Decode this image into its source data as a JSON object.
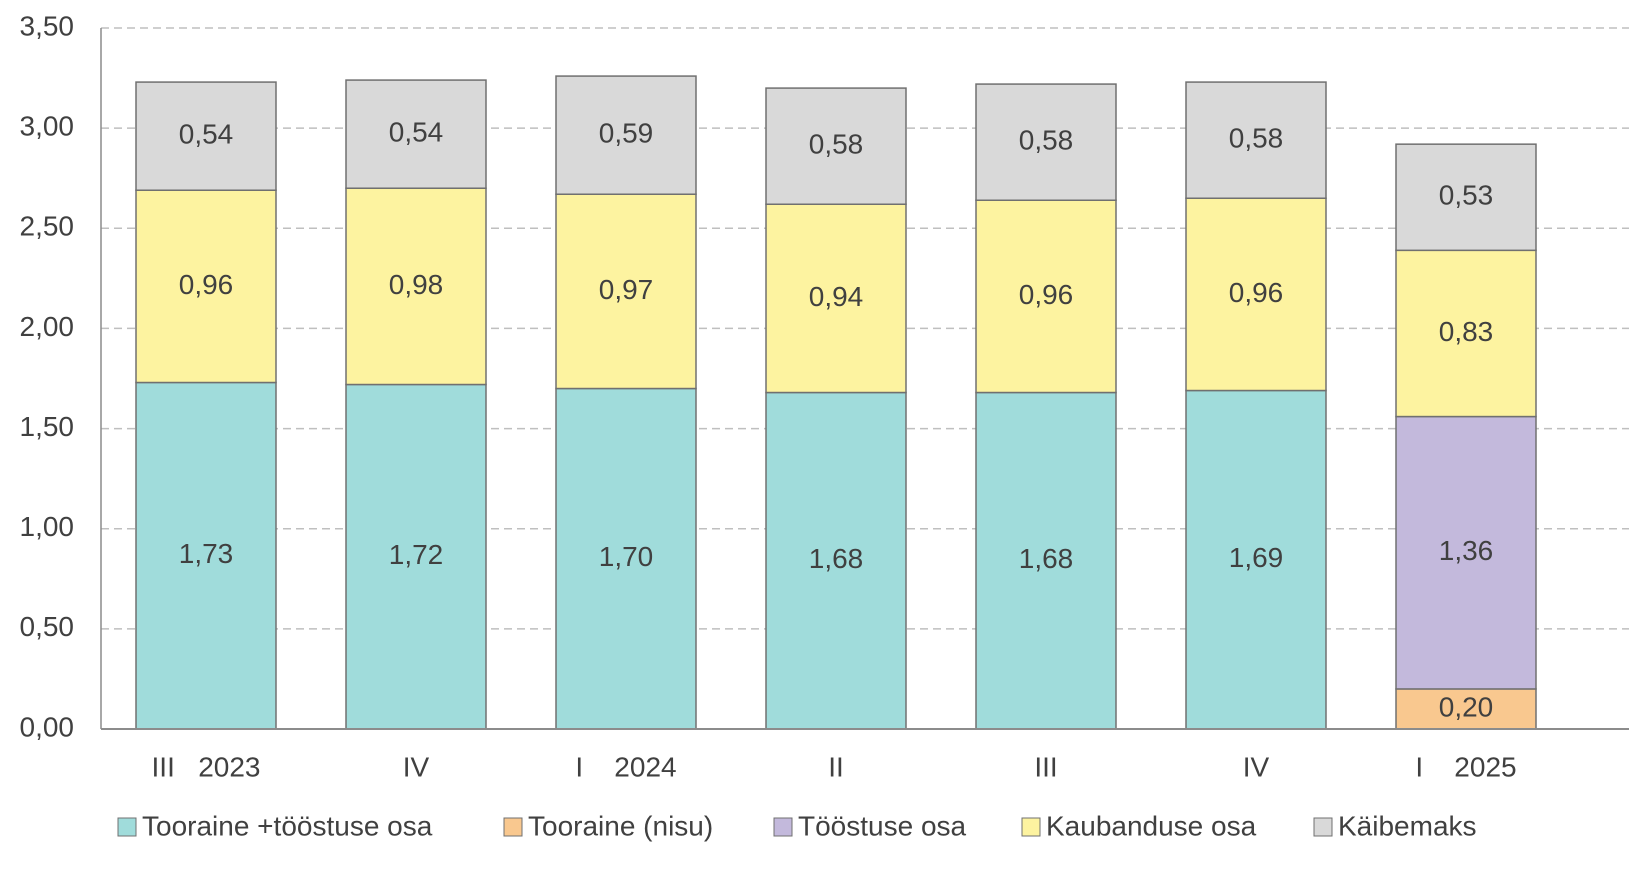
{
  "chart_data": {
    "type": "stacked_bar",
    "categories": [
      "III   2023",
      "IV",
      "I    2024",
      "II",
      "III",
      "IV",
      "I    2025"
    ],
    "series": [
      {
        "name": "Tooraine +tööstuse osa",
        "color": "#a0dcdb",
        "values": [
          1.73,
          1.72,
          1.7,
          1.68,
          1.68,
          1.69,
          null
        ],
        "value_labels": [
          "1,73",
          "1,72",
          "1,70",
          "1,68",
          "1,68",
          "1,69",
          null
        ]
      },
      {
        "name": "Tooraine (nisu)",
        "color": "#f9c88f",
        "values": [
          null,
          null,
          null,
          null,
          null,
          null,
          0.2
        ],
        "value_labels": [
          null,
          null,
          null,
          null,
          null,
          null,
          "0,20"
        ]
      },
      {
        "name": "Tööstuse osa",
        "color": "#c3b9dc",
        "values": [
          null,
          null,
          null,
          null,
          null,
          null,
          1.36
        ],
        "value_labels": [
          null,
          null,
          null,
          null,
          null,
          null,
          "1,36"
        ]
      },
      {
        "name": "Kaubanduse osa",
        "color": "#fdf3a0",
        "values": [
          0.96,
          0.98,
          0.97,
          0.94,
          0.96,
          0.96,
          0.83
        ],
        "value_labels": [
          "0,96",
          "0,98",
          "0,97",
          "0,94",
          "0,96",
          "0,96",
          "0,83"
        ]
      },
      {
        "name": "Käibemaks",
        "color": "#d9d9d9",
        "values": [
          0.54,
          0.54,
          0.59,
          0.58,
          0.58,
          0.58,
          0.53
        ],
        "value_labels": [
          "0,54",
          "0,54",
          "0,59",
          "0,58",
          "0,58",
          "0,58",
          "0,53"
        ]
      }
    ],
    "ylim": [
      0,
      3.5
    ],
    "yticks": [
      {
        "value": 0,
        "label": "0,00"
      },
      {
        "value": 0.5,
        "label": "0,50"
      },
      {
        "value": 1,
        "label": "1,00"
      },
      {
        "value": 1.5,
        "label": "1,50"
      },
      {
        "value": 2,
        "label": "2,00"
      },
      {
        "value": 2.5,
        "label": "2,50"
      },
      {
        "value": 3,
        "label": "3,00"
      },
      {
        "value": 3.5,
        "label": "3,50"
      }
    ],
    "grid": true,
    "legend": "bottom"
  }
}
